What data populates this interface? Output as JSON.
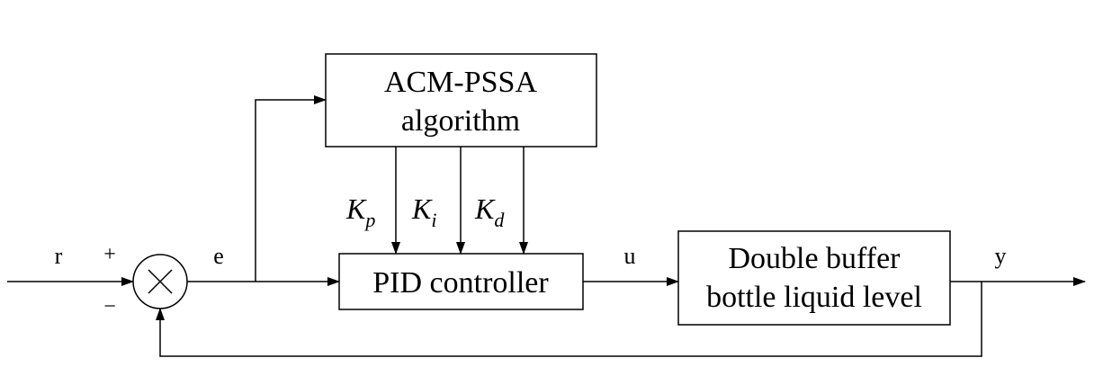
{
  "blocks": {
    "acm_pssa": {
      "line1": "ACM-PSSA",
      "line2": "algorithm"
    },
    "pid": {
      "label": "PID controller"
    },
    "plant": {
      "line1": "Double buffer",
      "line2": "bottle liquid level"
    }
  },
  "signals": {
    "r": "r",
    "e": "e",
    "u": "u",
    "y": "y",
    "plus": "+",
    "minus": "−"
  },
  "gains": {
    "kp": {
      "base": "K",
      "sub": "p"
    },
    "ki": {
      "base": "K",
      "sub": "i"
    },
    "kd": {
      "base": "K",
      "sub": "d"
    }
  }
}
